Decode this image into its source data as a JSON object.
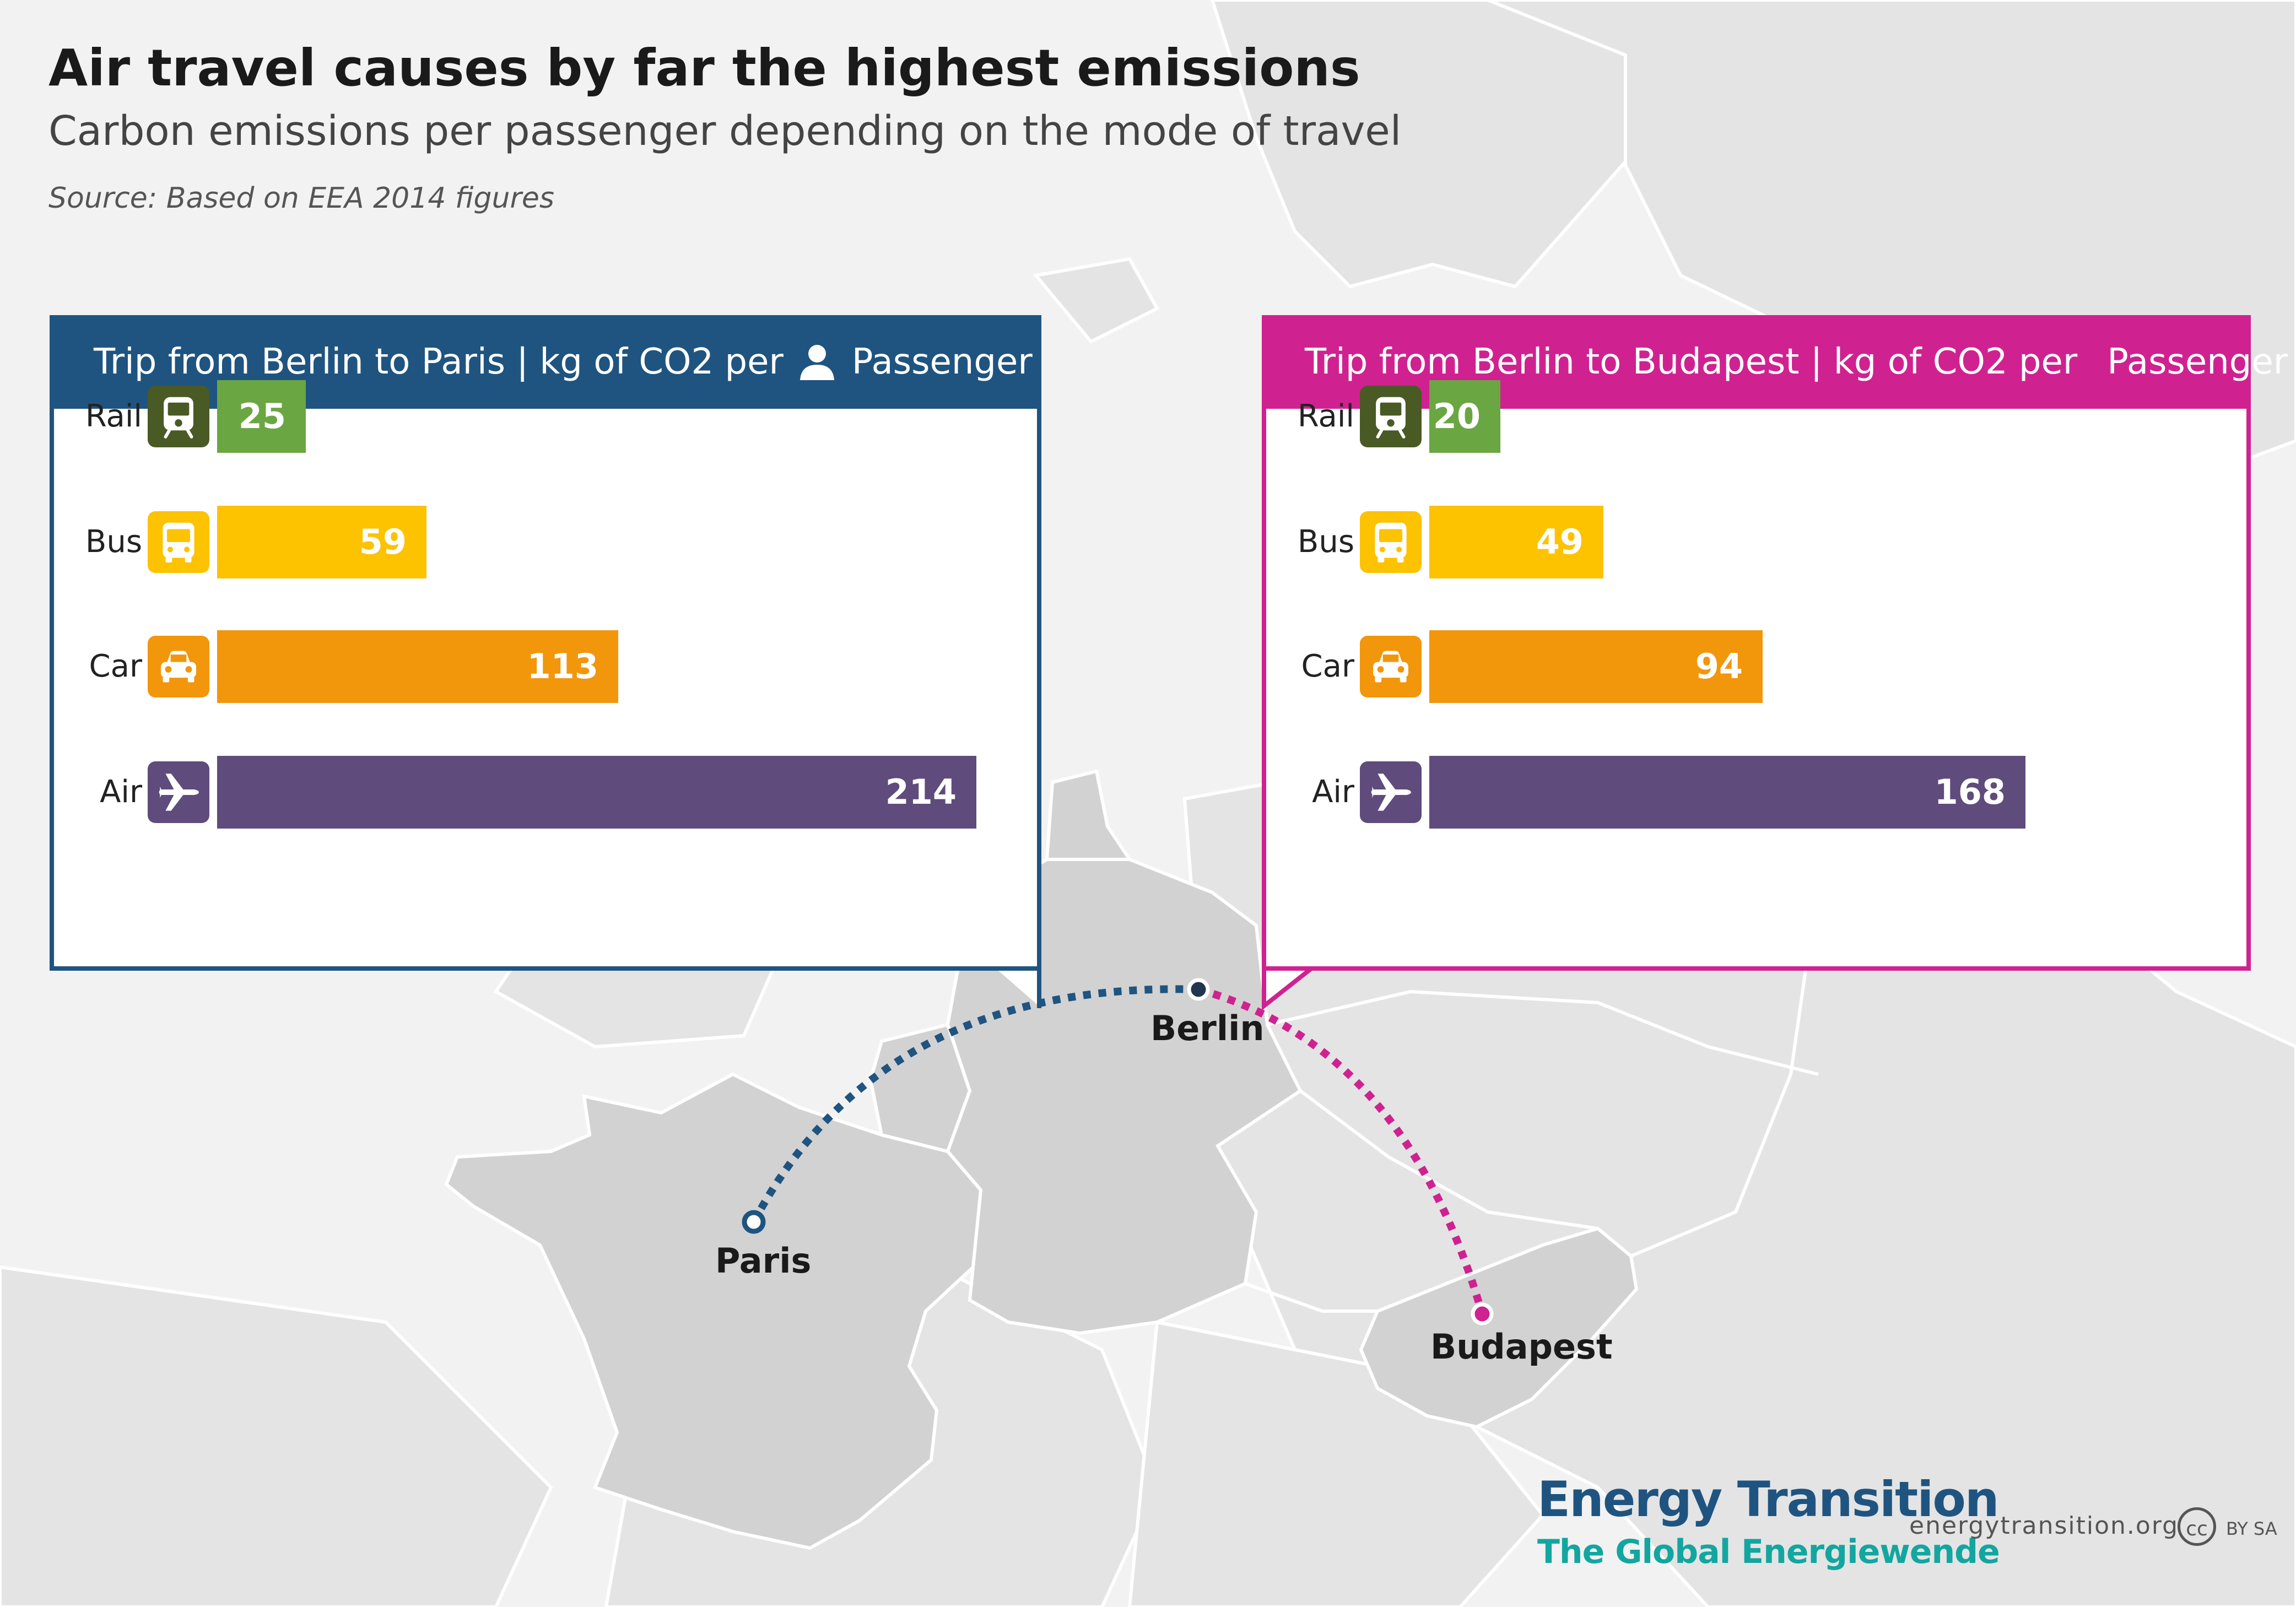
{
  "title": "Air travel causes by far the highest emissions",
  "subtitle": "Carbon emissions per passenger depending on the mode of travel",
  "source": "Source:  Based on EEA 2014 figures",
  "chart_data": [
    {
      "type": "bar",
      "title": "Trip from Berlin to Paris | kg of CO2 per Passenger",
      "header_prefix": "Trip from Berlin to Paris | kg of CO2 per",
      "header_suffix": "Passenger",
      "categories": [
        "Rail",
        "Bus",
        "Car",
        "Air"
      ],
      "values": [
        25,
        59,
        113,
        214
      ],
      "accent": "#1f5480"
    },
    {
      "type": "bar",
      "title": "Trip from Berlin to Budapest | kg of CO2 per Passenger",
      "header_prefix": "Trip from Berlin to Budapest | kg of CO2 per",
      "header_suffix": "Passenger",
      "categories": [
        "Rail",
        "Bus",
        "Car",
        "Air"
      ],
      "values": [
        20,
        49,
        94,
        168
      ],
      "accent": "#cf2290"
    }
  ],
  "modes": {
    "Rail": {
      "icon": "train-icon",
      "bar_color": "#6aa642",
      "icon_color": "#4a5a25"
    },
    "Bus": {
      "icon": "bus-icon",
      "bar_color": "#fdc200",
      "icon_color": "#fdc200"
    },
    "Car": {
      "icon": "car-icon",
      "bar_color": "#f2960b",
      "icon_color": "#f2960b"
    },
    "Air": {
      "icon": "plane-icon",
      "bar_color": "#5f4b7c",
      "icon_color": "#5f4b7c"
    }
  },
  "cities": {
    "berlin": "Berlin",
    "paris": "Paris",
    "budapest": "Budapest"
  },
  "footer": {
    "logo_line1": "Energy Transition",
    "logo_line2": "The Global Energiewende",
    "website": "energytransition.org",
    "cc_symbol": "cc",
    "license": "BY SA"
  }
}
